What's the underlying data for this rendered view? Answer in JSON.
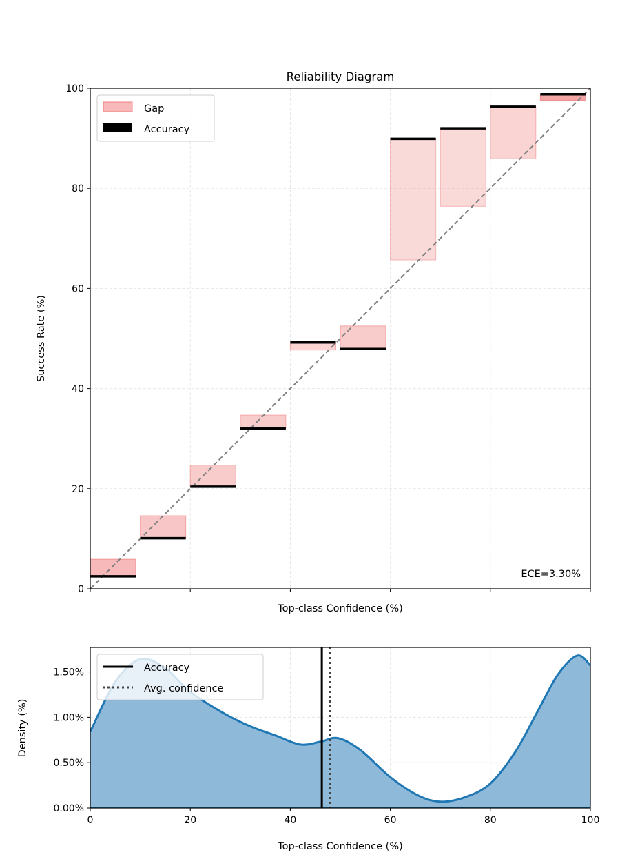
{
  "chart_data": [
    {
      "type": "bar",
      "title": "Reliability Diagram",
      "xlabel": "Top-class Confidence (%)",
      "ylabel": "Success Rate (%)",
      "xlim": [
        0,
        100
      ],
      "ylim": [
        0,
        100
      ],
      "xticks": [
        0,
        20,
        40,
        60,
        80,
        100
      ],
      "xtick_labels_shown": false,
      "yticks": [
        0,
        20,
        40,
        60,
        80,
        100
      ],
      "grid": true,
      "legend": {
        "placement": "top-left",
        "entries": [
          "Gap",
          "Accuracy"
        ]
      },
      "annotation": "ECE=3.30%",
      "bin_starts": [
        0,
        10,
        20,
        30,
        40,
        50,
        60,
        70,
        80,
        90
      ],
      "accuracy": [
        2.5,
        10.1,
        20.4,
        32.0,
        49.2,
        47.9,
        89.9,
        92.0,
        96.3,
        98.8
      ],
      "gap_other_end": [
        5.9,
        14.6,
        24.7,
        34.7,
        47.7,
        52.5,
        65.7,
        76.4,
        85.9,
        97.6
      ],
      "gap_opacity": [
        0.55,
        0.45,
        0.4,
        0.4,
        0.35,
        0.4,
        0.3,
        0.3,
        0.35,
        0.7
      ],
      "diagonal": "perfect calibration, dashed",
      "colors": {
        "gap_fill": "#f08080",
        "gap_edge": "#f08080",
        "accuracy": "#000000",
        "diagonal": "#808080"
      }
    },
    {
      "type": "area",
      "xlabel": "Top-class Confidence (%)",
      "ylabel": "Density (%)",
      "xlim": [
        0,
        100
      ],
      "ylim": [
        0,
        1.77
      ],
      "xticks": [
        0,
        20,
        40,
        60,
        80,
        100
      ],
      "yticks": [
        0,
        0.5,
        1.0,
        1.5
      ],
      "ytick_labels": [
        "0.00%",
        "0.50%",
        "1.00%",
        "1.50%"
      ],
      "grid": true,
      "legend": {
        "placement": "top-left",
        "entries": [
          "Accuracy",
          "Avg. confidence"
        ]
      },
      "x": [
        0,
        5,
        10,
        15,
        20,
        26.5,
        32,
        37,
        42,
        46,
        49.5,
        54,
        60,
        65.5,
        70,
        75,
        80,
        85,
        89.5,
        93.5,
        97.4,
        100
      ],
      "y": [
        0.84,
        1.39,
        1.64,
        1.54,
        1.28,
        1.05,
        0.9,
        0.8,
        0.7,
        0.73,
        0.77,
        0.64,
        0.34,
        0.14,
        0.07,
        0.12,
        0.27,
        0.62,
        1.07,
        1.47,
        1.68,
        1.57
      ],
      "accuracy_line": 46.3,
      "avg_confidence_line": 48.0,
      "colors": {
        "line": "#1f77b4",
        "fill": "#8fb9d9",
        "accuracy": "#000000",
        "avg_confidence": "#444444"
      }
    }
  ]
}
